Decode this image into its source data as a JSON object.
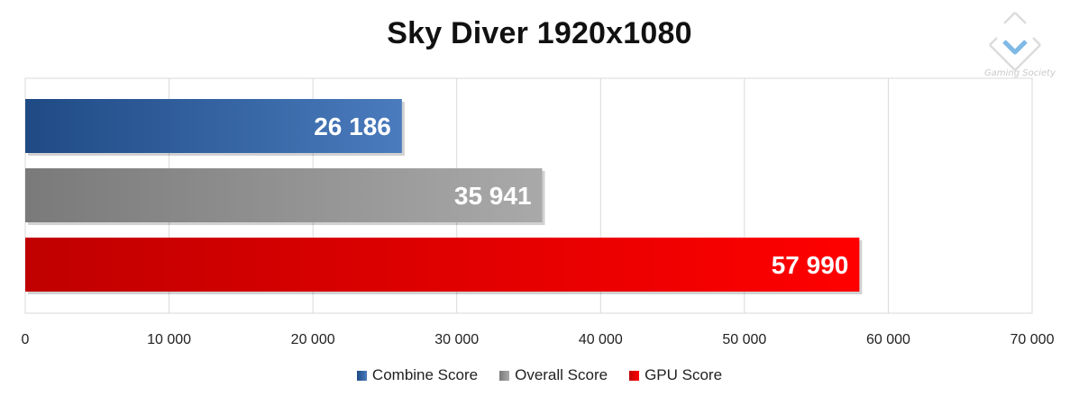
{
  "chart_data": {
    "type": "bar",
    "orientation": "horizontal",
    "title": "Sky Diver 1920x1080",
    "categories": [
      "Combine Score",
      "Overall Score",
      "GPU Score"
    ],
    "values": [
      26186,
      35941,
      57990
    ],
    "data_labels": [
      "26 186",
      "35 941",
      "57 990"
    ],
    "xlim": [
      0,
      70000
    ],
    "xticks": [
      0,
      10000,
      20000,
      30000,
      40000,
      50000,
      60000,
      70000
    ],
    "xtick_labels": [
      "0",
      "10 000",
      "20 000",
      "30 000",
      "40 000",
      "50 000",
      "60 000",
      "70 000"
    ],
    "grid": "vertical",
    "legend_position": "bottom",
    "series": [
      {
        "name": "Combine Score",
        "value": 26186,
        "label": "26 186",
        "color": "#4a7bbd",
        "color_dark": "#1f4a84"
      },
      {
        "name": "Overall Score",
        "value": 35941,
        "label": "35 941",
        "color": "#a9a9a9",
        "color_dark": "#7a7a7a"
      },
      {
        "name": "GPU Score",
        "value": 57990,
        "label": "57 990",
        "color": "#ff0000",
        "color_dark": "#c00000"
      }
    ]
  },
  "watermark": {
    "text": "Gaming Society",
    "icon": "chevron-logo-icon"
  }
}
